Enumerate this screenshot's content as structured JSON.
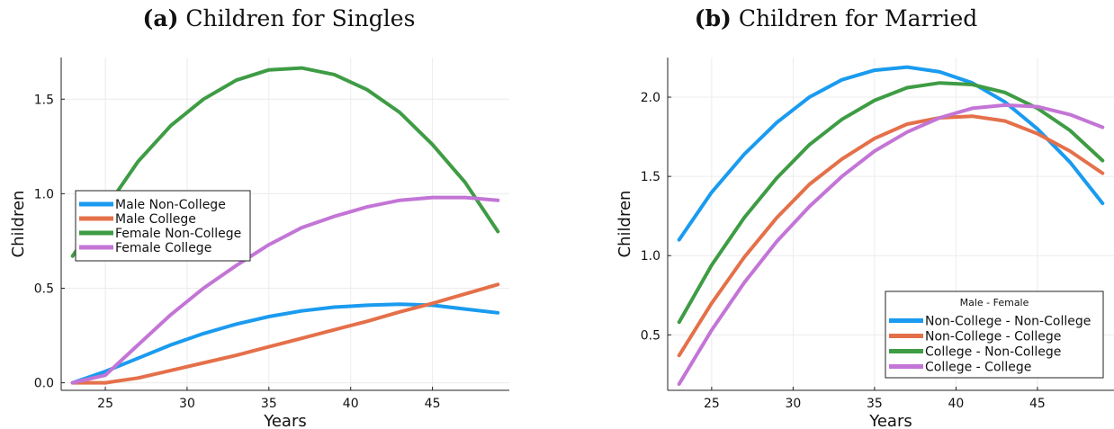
{
  "panels": [
    {
      "label": "(a)",
      "title": "Children for Singles"
    },
    {
      "label": "(b)",
      "title": "Children for Married"
    }
  ],
  "chart_data": [
    {
      "type": "line",
      "title": "(a) Children for Singles",
      "xlabel": "Years",
      "ylabel": "Children",
      "xlim": [
        22.3,
        49.7
      ],
      "ylim": [
        -0.04,
        1.72
      ],
      "xticks": [
        25,
        30,
        35,
        40,
        45
      ],
      "yticks": [
        0.0,
        0.5,
        1.0,
        1.5
      ],
      "ytick_labels": [
        "0.0",
        "0.5",
        "1.0",
        "1.5"
      ],
      "grid": true,
      "legend_position": "center-left",
      "legend_title": "",
      "x": [
        23,
        25,
        27,
        29,
        31,
        33,
        35,
        37,
        39,
        41,
        43,
        45,
        47,
        49
      ],
      "series": [
        {
          "name": "Male Non-College",
          "color": "#1a9bef",
          "values": [
            0.0,
            0.06,
            0.13,
            0.2,
            0.26,
            0.31,
            0.35,
            0.38,
            0.4,
            0.41,
            0.415,
            0.41,
            0.39,
            0.37
          ]
        },
        {
          "name": "Male College",
          "color": "#e4704a",
          "values": [
            0.0,
            0.0,
            0.025,
            0.065,
            0.105,
            0.145,
            0.19,
            0.235,
            0.28,
            0.325,
            0.375,
            0.42,
            0.47,
            0.52
          ]
        },
        {
          "name": "Female Non-College",
          "color": "#3e9c44",
          "values": [
            0.67,
            0.92,
            1.17,
            1.36,
            1.5,
            1.6,
            1.655,
            1.665,
            1.63,
            1.55,
            1.43,
            1.26,
            1.06,
            0.8
          ]
        },
        {
          "name": "Female College",
          "color": "#c375d6",
          "values": [
            0.0,
            0.04,
            0.2,
            0.36,
            0.5,
            0.62,
            0.73,
            0.82,
            0.88,
            0.93,
            0.965,
            0.98,
            0.98,
            0.965
          ]
        }
      ]
    },
    {
      "type": "line",
      "title": "(b) Children for Married",
      "xlabel": "Years",
      "ylabel": "Children",
      "xlim": [
        22.3,
        49.7
      ],
      "ylim": [
        0.15,
        2.25
      ],
      "xticks": [
        25,
        30,
        35,
        40,
        45
      ],
      "yticks": [
        0.5,
        1.0,
        1.5,
        2.0
      ],
      "ytick_labels": [
        "0.5",
        "1.0",
        "1.5",
        "2.0"
      ],
      "grid": true,
      "legend_position": "bottom-right",
      "legend_title": "Male - Female",
      "x": [
        23,
        25,
        27,
        29,
        31,
        33,
        35,
        37,
        39,
        41,
        43,
        45,
        47,
        49
      ],
      "series": [
        {
          "name": "Non-College - Non-College",
          "color": "#1a9bef",
          "values": [
            1.1,
            1.4,
            1.64,
            1.84,
            2.0,
            2.11,
            2.17,
            2.19,
            2.16,
            2.09,
            1.97,
            1.8,
            1.59,
            1.33
          ]
        },
        {
          "name": "Non-College - College",
          "color": "#e4704a",
          "values": [
            0.37,
            0.7,
            0.99,
            1.24,
            1.45,
            1.61,
            1.74,
            1.83,
            1.87,
            1.88,
            1.85,
            1.77,
            1.66,
            1.52
          ]
        },
        {
          "name": "College - Non-College",
          "color": "#3e9c44",
          "values": [
            0.58,
            0.94,
            1.24,
            1.49,
            1.7,
            1.86,
            1.98,
            2.06,
            2.09,
            2.08,
            2.03,
            1.93,
            1.79,
            1.6
          ]
        },
        {
          "name": "College -  College",
          "color": "#c375d6",
          "values": [
            0.19,
            0.53,
            0.83,
            1.09,
            1.31,
            1.5,
            1.66,
            1.78,
            1.87,
            1.93,
            1.95,
            1.94,
            1.89,
            1.81
          ]
        }
      ]
    }
  ]
}
